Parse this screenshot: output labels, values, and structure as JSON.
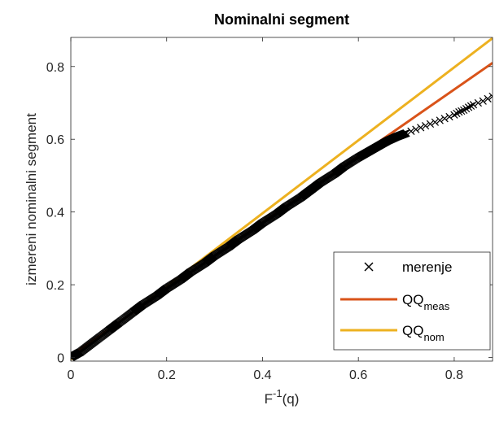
{
  "chart_data": {
    "type": "scatter",
    "title": "Nominalni segment",
    "xlabel": {
      "base": "F",
      "sup": "-1",
      "rest": "(q)"
    },
    "ylabel": "izmereni nominalni segment",
    "xlim": [
      0,
      0.88
    ],
    "ylim": [
      -0.01,
      0.88
    ],
    "xticks": [
      0,
      0.2,
      0.4,
      0.6,
      0.8
    ],
    "yticks": [
      0,
      0.2,
      0.4,
      0.6,
      0.8
    ],
    "xtick_labels": [
      "0",
      "0.2",
      "0.4",
      "0.6",
      "0.8"
    ],
    "ytick_labels": [
      "0",
      "0.2",
      "0.4",
      "0.6",
      "0.8"
    ],
    "grid": false,
    "legend_position": "bottom-right",
    "series": [
      {
        "name": "merenje",
        "marker": "x",
        "color": "#000000",
        "x": [
          0.0,
          0.02,
          0.05,
          0.08,
          0.1,
          0.13,
          0.15,
          0.18,
          0.2,
          0.23,
          0.25,
          0.28,
          0.3,
          0.33,
          0.35,
          0.38,
          0.4,
          0.43,
          0.45,
          0.48,
          0.5,
          0.52,
          0.55,
          0.57,
          0.6,
          0.62,
          0.64,
          0.66,
          0.68,
          0.7,
          0.72,
          0.74,
          0.76,
          0.78,
          0.8,
          0.81,
          0.82,
          0.83,
          0.84,
          0.86,
          0.88
        ],
        "y": [
          0.0,
          0.015,
          0.045,
          0.075,
          0.095,
          0.125,
          0.145,
          0.17,
          0.19,
          0.215,
          0.235,
          0.26,
          0.28,
          0.305,
          0.325,
          0.35,
          0.37,
          0.395,
          0.415,
          0.44,
          0.46,
          0.48,
          0.505,
          0.525,
          0.55,
          0.565,
          0.58,
          0.595,
          0.607,
          0.617,
          0.627,
          0.637,
          0.647,
          0.657,
          0.667,
          0.675,
          0.68,
          0.688,
          0.695,
          0.705,
          0.718
        ]
      },
      {
        "name": "QQ",
        "sub": "meas",
        "type": "line",
        "color": "#d95319",
        "x": [
          0.0,
          0.88
        ],
        "y": [
          0.005,
          0.81
        ]
      },
      {
        "name": "QQ",
        "sub": "nom",
        "type": "line",
        "color": "#edb120",
        "x": [
          0.0,
          0.88
        ],
        "y": [
          -0.005,
          0.878
        ]
      }
    ]
  }
}
